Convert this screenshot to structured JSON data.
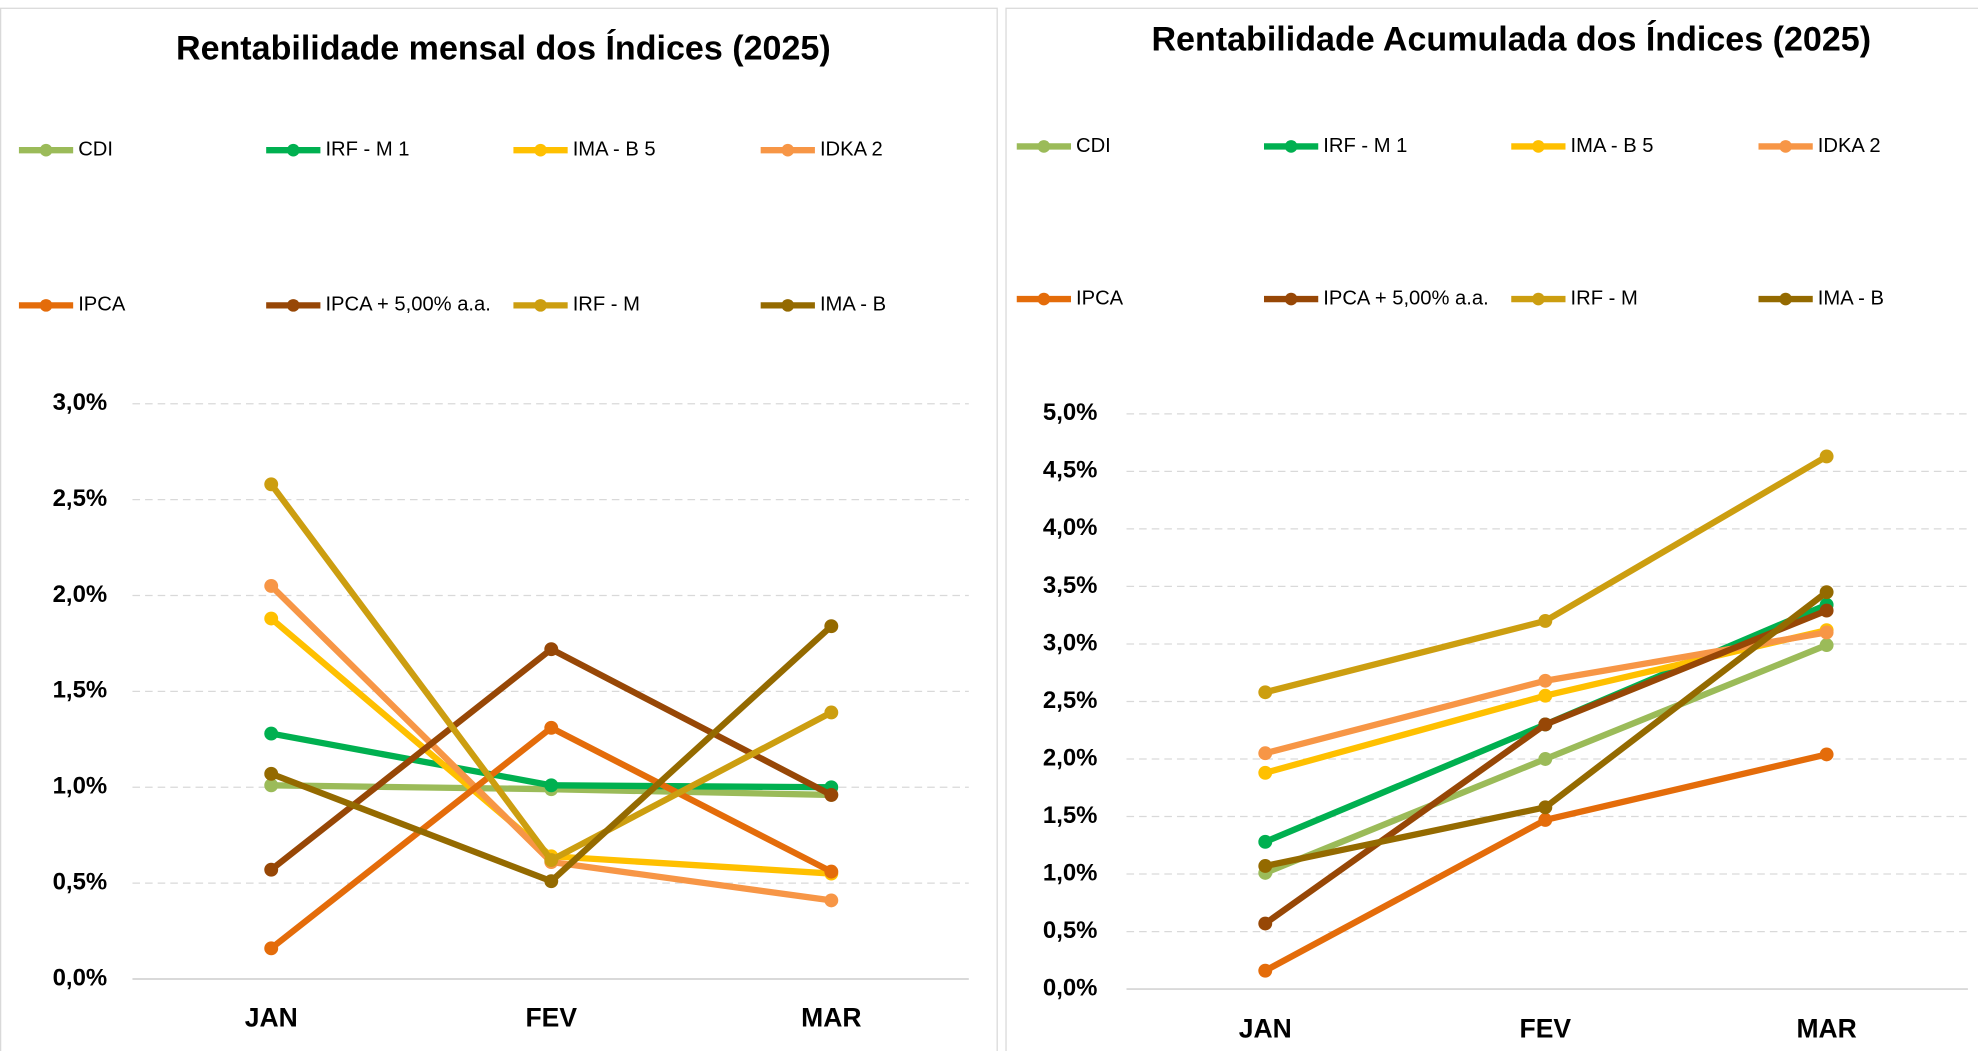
{
  "chart_data": [
    {
      "type": "line",
      "title": "Rentabilidade mensal dos Índices (2025)",
      "categories": [
        "JAN",
        "FEV",
        "MAR"
      ],
      "ylim": [
        0,
        3
      ],
      "yticks": [
        {
          "value": 0,
          "label": "0,0%"
        },
        {
          "value": 0.5,
          "label": "0,5%"
        },
        {
          "value": 1,
          "label": "1,0%"
        },
        {
          "value": 1.5,
          "label": "1,5%"
        },
        {
          "value": 2,
          "label": "2,0%"
        },
        {
          "value": 2.5,
          "label": "2,5%"
        },
        {
          "value": 3,
          "label": "3,0%"
        }
      ],
      "grid": true,
      "series": [
        {
          "name": "CDI",
          "color": "#9bbb59",
          "values": [
            1.01,
            0.99,
            0.96
          ]
        },
        {
          "name": "IRF - M 1",
          "color": "#00b050",
          "values": [
            1.28,
            1.01,
            1.0
          ]
        },
        {
          "name": "IMA - B 5",
          "color": "#ffc000",
          "values": [
            1.88,
            0.64,
            0.55
          ]
        },
        {
          "name": "IDKA 2",
          "color": "#f79646",
          "values": [
            2.05,
            0.61,
            0.41
          ]
        },
        {
          "name": "IPCA",
          "color": "#e46c0a",
          "values": [
            0.16,
            1.31,
            0.56
          ]
        },
        {
          "name": "IPCA + 5,00% a.a.",
          "color": "#974706",
          "values": [
            0.57,
            1.72,
            0.96
          ]
        },
        {
          "name": "IRF - M",
          "color": "#cc9e10",
          "values": [
            2.58,
            0.62,
            1.39
          ]
        },
        {
          "name": "IMA - B",
          "color": "#946a00",
          "values": [
            1.07,
            0.51,
            1.84
          ]
        }
      ]
    },
    {
      "type": "line",
      "title": "Rentabilidade Acumulada dos Índices (2025)",
      "categories": [
        "JAN",
        "FEV",
        "MAR"
      ],
      "ylim": [
        0,
        5
      ],
      "yticks": [
        {
          "value": 0,
          "label": "0,0%"
        },
        {
          "value": 0.5,
          "label": "0,5%"
        },
        {
          "value": 1,
          "label": "1,0%"
        },
        {
          "value": 1.5,
          "label": "1,5%"
        },
        {
          "value": 2,
          "label": "2,0%"
        },
        {
          "value": 2.5,
          "label": "2,5%"
        },
        {
          "value": 3,
          "label": "3,0%"
        },
        {
          "value": 3.5,
          "label": "3,5%"
        },
        {
          "value": 4,
          "label": "4,0%"
        },
        {
          "value": 4.5,
          "label": "4,5%"
        },
        {
          "value": 5,
          "label": "5,0%"
        }
      ],
      "grid": true,
      "series": [
        {
          "name": "CDI",
          "color": "#9bbb59",
          "values": [
            1.01,
            2.0,
            2.99
          ]
        },
        {
          "name": "IRF - M 1",
          "color": "#00b050",
          "values": [
            1.28,
            2.3,
            3.34
          ]
        },
        {
          "name": "IMA - B 5",
          "color": "#ffc000",
          "values": [
            1.88,
            2.55,
            3.12
          ]
        },
        {
          "name": "IDKA 2",
          "color": "#f79646",
          "values": [
            2.05,
            2.68,
            3.1
          ]
        },
        {
          "name": "IPCA",
          "color": "#e46c0a",
          "values": [
            0.16,
            1.47,
            2.04
          ]
        },
        {
          "name": "IPCA + 5,00% a.a.",
          "color": "#974706",
          "values": [
            0.57,
            2.3,
            3.29
          ]
        },
        {
          "name": "IRF - M",
          "color": "#cc9e10",
          "values": [
            2.58,
            3.2,
            4.63
          ]
        },
        {
          "name": "IMA - B",
          "color": "#946a00",
          "values": [
            1.07,
            1.58,
            3.45
          ]
        }
      ]
    }
  ]
}
